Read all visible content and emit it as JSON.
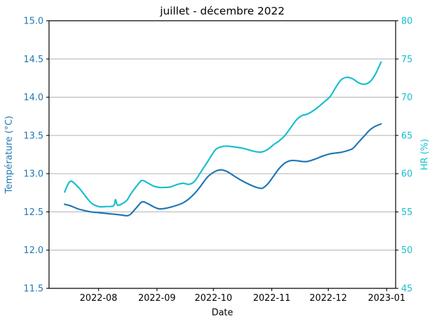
{
  "chart_data": {
    "type": "line",
    "title": "juillet - décembre 2022",
    "xlabel": "Date",
    "grid": "horizontal",
    "legend": "none",
    "background": "#ffffff",
    "grid_color": "#b0b0b0",
    "spine_color": "#000000",
    "x_ticks": [
      {
        "label": "2022-08",
        "date": "2022-08-01"
      },
      {
        "label": "2022-09",
        "date": "2022-09-01"
      },
      {
        "label": "2022-10",
        "date": "2022-10-01"
      },
      {
        "label": "2022-11",
        "date": "2022-11-01"
      },
      {
        "label": "2022-12",
        "date": "2022-12-01"
      },
      {
        "label": "2023-01",
        "date": "2023-01-01"
      }
    ],
    "y_left": {
      "label": "Température (°C)",
      "color": "#1f77b4",
      "range": [
        11.5,
        15.0
      ],
      "ticks": [
        "15.0",
        "14.5",
        "14.0",
        "13.5",
        "13.0",
        "12.5",
        "12.0",
        "11.5"
      ]
    },
    "y_right": {
      "label": "HR (%)",
      "color": "#17becf",
      "range": [
        45,
        80
      ],
      "ticks": [
        "80",
        "75",
        "70",
        "65",
        "60",
        "55",
        "50",
        "45"
      ]
    },
    "series": [
      {
        "name": "Température (°C)",
        "axis": "left",
        "color": "#1f77b4",
        "points": [
          [
            "2022-07-14",
            12.6
          ],
          [
            "2022-07-17",
            12.58
          ],
          [
            "2022-07-21",
            12.54
          ],
          [
            "2022-07-24",
            12.52
          ],
          [
            "2022-07-28",
            12.5
          ],
          [
            "2022-08-01",
            12.49
          ],
          [
            "2022-08-05",
            12.48
          ],
          [
            "2022-08-09",
            12.47
          ],
          [
            "2022-08-13",
            12.46
          ],
          [
            "2022-08-16",
            12.45
          ],
          [
            "2022-08-18",
            12.47
          ],
          [
            "2022-08-21",
            12.55
          ],
          [
            "2022-08-24",
            12.63
          ],
          [
            "2022-08-27",
            12.61
          ],
          [
            "2022-08-30",
            12.57
          ],
          [
            "2022-09-02",
            12.54
          ],
          [
            "2022-09-05",
            12.545
          ],
          [
            "2022-09-08",
            12.56
          ],
          [
            "2022-09-12",
            12.59
          ],
          [
            "2022-09-15",
            12.62
          ],
          [
            "2022-09-18",
            12.67
          ],
          [
            "2022-09-21",
            12.74
          ],
          [
            "2022-09-24",
            12.83
          ],
          [
            "2022-09-28",
            12.96
          ],
          [
            "2022-10-02",
            13.03
          ],
          [
            "2022-10-05",
            13.05
          ],
          [
            "2022-10-08",
            13.03
          ],
          [
            "2022-10-12",
            12.97
          ],
          [
            "2022-10-16",
            12.91
          ],
          [
            "2022-10-20",
            12.86
          ],
          [
            "2022-10-24",
            12.82
          ],
          [
            "2022-10-27",
            12.81
          ],
          [
            "2022-10-30",
            12.87
          ],
          [
            "2022-11-02",
            12.97
          ],
          [
            "2022-11-05",
            13.07
          ],
          [
            "2022-11-08",
            13.14
          ],
          [
            "2022-11-11",
            13.17
          ],
          [
            "2022-11-14",
            13.17
          ],
          [
            "2022-11-17",
            13.16
          ],
          [
            "2022-11-20",
            13.16
          ],
          [
            "2022-11-24",
            13.19
          ],
          [
            "2022-11-28",
            13.23
          ],
          [
            "2022-12-02",
            13.26
          ],
          [
            "2022-12-05",
            13.27
          ],
          [
            "2022-12-08",
            13.28
          ],
          [
            "2022-12-11",
            13.3
          ],
          [
            "2022-12-14",
            13.33
          ],
          [
            "2022-12-17",
            13.41
          ],
          [
            "2022-12-20",
            13.49
          ],
          [
            "2022-12-23",
            13.57
          ],
          [
            "2022-12-26",
            13.62
          ],
          [
            "2022-12-29",
            13.65
          ]
        ]
      },
      {
        "name": "HR (%)",
        "axis": "right",
        "color": "#17becf",
        "points": [
          [
            "2022-07-14",
            57.6
          ],
          [
            "2022-07-17",
            59.0
          ],
          [
            "2022-07-21",
            58.3
          ],
          [
            "2022-07-24",
            57.4
          ],
          [
            "2022-07-28",
            56.2
          ],
          [
            "2022-08-01",
            55.7
          ],
          [
            "2022-08-05",
            55.7
          ],
          [
            "2022-08-09",
            55.8
          ],
          [
            "2022-08-10",
            56.6
          ],
          [
            "2022-08-11",
            55.9
          ],
          [
            "2022-08-13",
            56.0
          ],
          [
            "2022-08-16",
            56.5
          ],
          [
            "2022-08-18",
            57.3
          ],
          [
            "2022-08-21",
            58.3
          ],
          [
            "2022-08-24",
            59.1
          ],
          [
            "2022-08-27",
            58.8
          ],
          [
            "2022-08-30",
            58.4
          ],
          [
            "2022-09-02",
            58.2
          ],
          [
            "2022-09-05",
            58.2
          ],
          [
            "2022-09-08",
            58.25
          ],
          [
            "2022-09-12",
            58.6
          ],
          [
            "2022-09-15",
            58.75
          ],
          [
            "2022-09-18",
            58.6
          ],
          [
            "2022-09-21",
            59.0
          ],
          [
            "2022-09-24",
            60.1
          ],
          [
            "2022-09-28",
            61.6
          ],
          [
            "2022-10-02",
            63.1
          ],
          [
            "2022-10-05",
            63.5
          ],
          [
            "2022-10-08",
            63.6
          ],
          [
            "2022-10-12",
            63.5
          ],
          [
            "2022-10-16",
            63.35
          ],
          [
            "2022-10-20",
            63.1
          ],
          [
            "2022-10-24",
            62.85
          ],
          [
            "2022-10-27",
            62.85
          ],
          [
            "2022-10-30",
            63.2
          ],
          [
            "2022-11-02",
            63.8
          ],
          [
            "2022-11-05",
            64.3
          ],
          [
            "2022-11-08",
            65.0
          ],
          [
            "2022-11-11",
            66.0
          ],
          [
            "2022-11-14",
            67.0
          ],
          [
            "2022-11-17",
            67.6
          ],
          [
            "2022-11-20",
            67.8
          ],
          [
            "2022-11-24",
            68.4
          ],
          [
            "2022-11-28",
            69.2
          ],
          [
            "2022-12-02",
            70.1
          ],
          [
            "2022-12-05",
            71.3
          ],
          [
            "2022-12-08",
            72.3
          ],
          [
            "2022-12-11",
            72.6
          ],
          [
            "2022-12-14",
            72.4
          ],
          [
            "2022-12-17",
            71.9
          ],
          [
            "2022-12-20",
            71.7
          ],
          [
            "2022-12-23",
            72.0
          ],
          [
            "2022-12-26",
            73.0
          ],
          [
            "2022-12-29",
            74.6
          ]
        ]
      }
    ]
  }
}
